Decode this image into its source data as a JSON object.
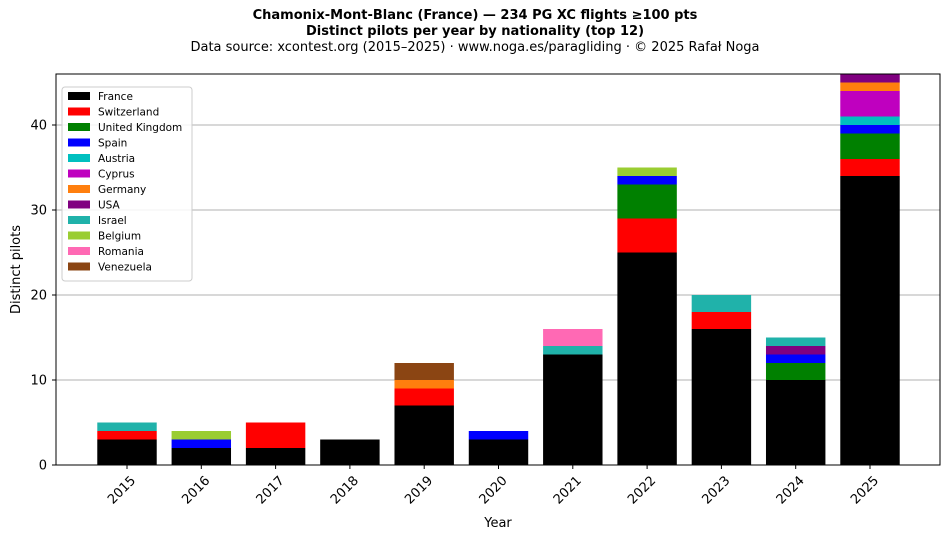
{
  "title": {
    "line1": "Chamonix-Mont-Blanc (France)  —  234 PG XC flights ≥100 pts",
    "line2": "Distinct pilots per year by nationality (top 12)",
    "line3": "Data source: xcontest.org (2015–2025)  ·  www.noga.es/paragliding  ·  © 2025 Rafał Noga"
  },
  "chart_data": {
    "type": "bar",
    "stacked": true,
    "categories": [
      "2015",
      "2016",
      "2017",
      "2018",
      "2019",
      "2020",
      "2021",
      "2022",
      "2023",
      "2024",
      "2025"
    ],
    "xlabel": "Year",
    "ylabel": "Distinct pilots",
    "ylim": [
      0,
      46
    ],
    "yticks": [
      0,
      10,
      20,
      30,
      40
    ],
    "grid": "y",
    "legend_position": "top-left",
    "series": [
      {
        "name": "France",
        "color": "#000000",
        "values": [
          3,
          2,
          2,
          3,
          7,
          3,
          13,
          25,
          16,
          10,
          34
        ]
      },
      {
        "name": "Switzerland",
        "color": "#ff0000",
        "values": [
          1,
          0,
          3,
          0,
          2,
          0,
          0,
          4,
          2,
          0,
          2
        ]
      },
      {
        "name": "United Kingdom",
        "color": "#008000",
        "values": [
          0,
          0,
          0,
          0,
          0,
          0,
          0,
          4,
          0,
          2,
          3
        ]
      },
      {
        "name": "Spain",
        "color": "#0000ff",
        "values": [
          0,
          1,
          0,
          0,
          0,
          1,
          0,
          1,
          0,
          1,
          1
        ]
      },
      {
        "name": "Austria",
        "color": "#00bfbf",
        "values": [
          0,
          0,
          0,
          0,
          0,
          0,
          0,
          0,
          0,
          0,
          1
        ]
      },
      {
        "name": "Cyprus",
        "color": "#bf00bf",
        "values": [
          0,
          0,
          0,
          0,
          0,
          0,
          0,
          0,
          0,
          0,
          3
        ]
      },
      {
        "name": "Germany",
        "color": "#ff7f0e",
        "values": [
          0,
          0,
          0,
          0,
          1,
          0,
          0,
          0,
          0,
          0,
          1
        ]
      },
      {
        "name": "USA",
        "color": "#800080",
        "values": [
          0,
          0,
          0,
          0,
          0,
          0,
          0,
          0,
          0,
          1,
          1
        ]
      },
      {
        "name": "Israel",
        "color": "#20b2aa",
        "values": [
          1,
          0,
          0,
          0,
          0,
          0,
          1,
          0,
          2,
          1,
          0
        ]
      },
      {
        "name": "Belgium",
        "color": "#9acd32",
        "values": [
          0,
          1,
          0,
          0,
          0,
          0,
          0,
          1,
          0,
          0,
          0
        ]
      },
      {
        "name": "Romania",
        "color": "#ff69b4",
        "values": [
          0,
          0,
          0,
          0,
          0,
          0,
          2,
          0,
          0,
          0,
          0
        ]
      },
      {
        "name": "Venezuela",
        "color": "#8b4513",
        "values": [
          0,
          0,
          0,
          0,
          2,
          0,
          0,
          0,
          0,
          0,
          0
        ]
      }
    ]
  }
}
